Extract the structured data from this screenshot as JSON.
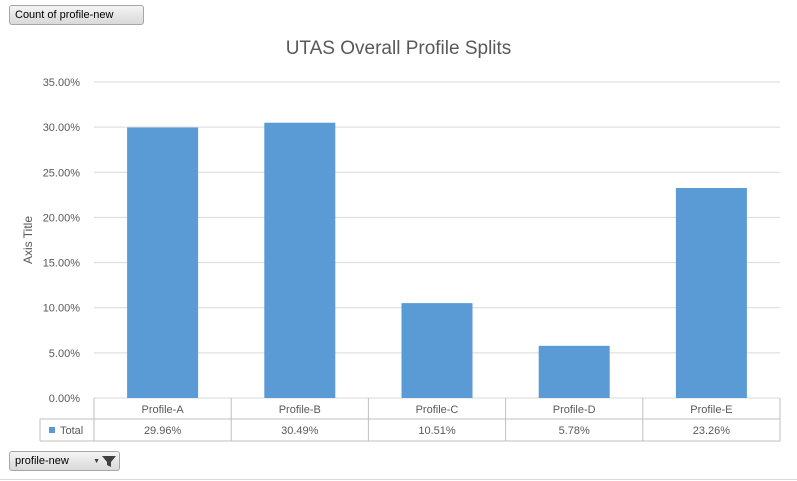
{
  "value_field_button": "Count of profile-new",
  "axis_field_button": "profile-new",
  "icons": {
    "filter": "filter-icon",
    "dropdown": "chevron-down-icon",
    "legend_key": "legend-square-icon"
  },
  "chart_data": {
    "type": "bar",
    "title": "UTAS Overall Profile Splits",
    "ylabel": "Axis Title",
    "xlabel": "",
    "categories": [
      "Profile-A",
      "Profile-B",
      "Profile-C",
      "Profile-D",
      "Profile-E"
    ],
    "series": [
      {
        "name": "Total",
        "values": [
          29.96,
          30.49,
          10.51,
          5.78,
          23.26
        ],
        "color": "#5b9bd5"
      }
    ],
    "data_labels": [
      "29.96%",
      "30.49%",
      "10.51%",
      "5.78%",
      "23.26%"
    ],
    "ylim": [
      0,
      35
    ],
    "yticks": [
      "0.00%",
      "5.00%",
      "10.00%",
      "15.00%",
      "20.00%",
      "25.00%",
      "30.00%",
      "35.00%"
    ],
    "grid": true,
    "data_table": true
  }
}
